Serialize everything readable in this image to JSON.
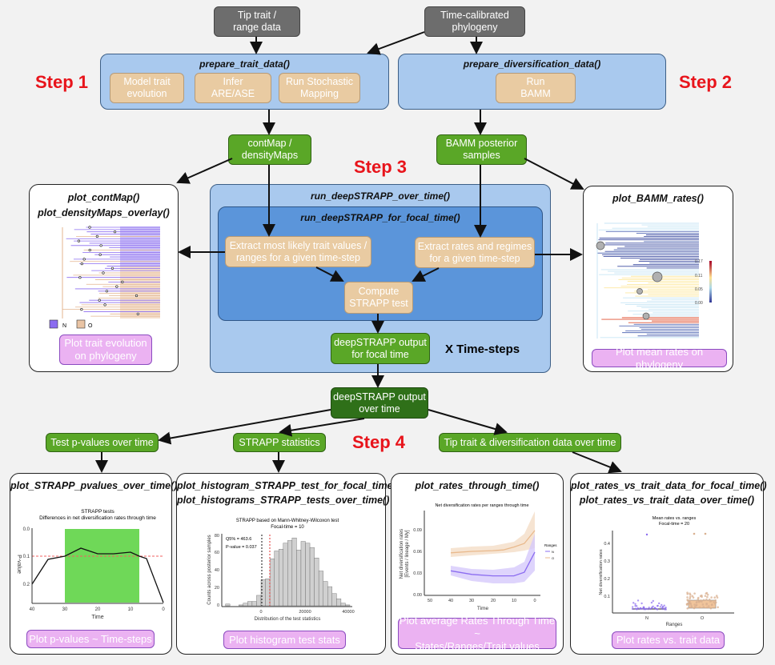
{
  "inputs": {
    "trait": "Tip trait /\nrange data",
    "phylogeny": "Time-calibrated\nphylogeny"
  },
  "steps": {
    "s1": "Step 1",
    "s2": "Step 2",
    "s3": "Step 3",
    "s4": "Step 4"
  },
  "prepare_trait": {
    "title": "prepare_trait_data()",
    "items": [
      "Model trait\nevolution",
      "Infer\nARE/ASE",
      "Run Stochastic\nMapping"
    ]
  },
  "prepare_div": {
    "title": "prepare_diversification_data()",
    "items": [
      "Run\nBAMM"
    ]
  },
  "contmap_node": "contMap /\ndensityMaps",
  "bamm_node": "BAMM posterior\nsamples",
  "over_time": {
    "title": "run_deepSTRAPP_over_time()",
    "repeat_label": "X  Time-steps"
  },
  "focal": {
    "title": "run_deepSTRAPP_for_focal_time()",
    "extract_trait": "Extract most likely trait values /\nranges for a given time-step",
    "extract_rates": "Extract rates and regimes\nfor a given time-step",
    "compute": "Compute\nSTRAPP test"
  },
  "focal_output": "deepSTRAPP output\nfor focal time",
  "overtime_output": "deepSTRAPP output\nover time",
  "step4_labels": [
    "Test p-values over time",
    "STRAPP statistics",
    "Tip trait & diversification data over time"
  ],
  "panel_contmap": {
    "title1": "plot_contMap()",
    "title2": "plot_densityMaps_overlay()",
    "legend": [
      "N",
      "O"
    ],
    "button": "Plot trait evolution\non phylogeny"
  },
  "panel_bamm": {
    "title": "plot_BAMM_rates()",
    "colorbar": [
      "0.17",
      "0.11",
      "0.05",
      "0.00"
    ],
    "button": "Plot mean rates on phylogeny"
  },
  "panel_pvalues": {
    "title": "plot_STRAPP_pvalues_over_time()",
    "plot_title": "STRAPP tests",
    "plot_subtitle": "Differences in net diversification rates through time",
    "ylabel": "P-value",
    "xlabel": "Time",
    "yticks": [
      "0.0",
      "0.1",
      "0.2"
    ],
    "xticks": [
      "40",
      "30",
      "20",
      "10",
      "0"
    ],
    "button": "Plot p-values ~ Time-steps"
  },
  "panel_hist": {
    "title1": "plot_histogram_STRAPP_test_for_focal_time()",
    "title2": "plot_histograms_STRAPP_tests_over_time()",
    "plot_title": "STRAPP based on Mann-Whitney-Wilcoxon test",
    "plot_subtitle": "Focal-time = 10",
    "q5": "Q5% = 463.6",
    "pvalue": "P-value = 0.037",
    "ylabel": "Counts across posterior samples",
    "xlabel": "Distribution of the test statistics",
    "yticks": [
      "0",
      "20",
      "40",
      "60",
      "80"
    ],
    "xticks": [
      "0",
      "20000",
      "40000"
    ],
    "button": "Plot histogram test stats"
  },
  "panel_rtt": {
    "title": "plot_rates_through_time()",
    "plot_title": "Net diversification rates per ranges through time",
    "ylabel1": "Net diversification rates",
    "ylabel2": "[Events / lineage / My]",
    "xlabel": "Time",
    "yticks": [
      "0.00",
      "0.03",
      "0.06",
      "0.09"
    ],
    "xticks": [
      "50",
      "40",
      "30",
      "20",
      "10",
      "0"
    ],
    "legend_title": "Ranges",
    "legend": [
      "N",
      "O"
    ],
    "button": "Plot average Rates Through Time ~\nStates/Ranges/Trait values"
  },
  "panel_box": {
    "title1": "plot_rates_vs_trait_data_for_focal_time()",
    "title2": "plot_rates_vs_trait_data_over_time()",
    "plot_title": "Mean rates vs. ranges",
    "plot_subtitle": "Focal-time = 20",
    "ylabel": "Net diversification rates",
    "xlabel": "Ranges",
    "yticks": [
      "0.1",
      "0.2",
      "0.3",
      "0.4"
    ],
    "xticks": [
      "N",
      "O"
    ],
    "button": "Plot rates vs. trait data"
  },
  "colors": {
    "step": "#e8141b",
    "green": "#5aa727",
    "dark_green": "#2f7019",
    "tan": "#e9cba2",
    "light_blue": "#a9c9ee",
    "blue": "#5b95da",
    "pink": "#ebb2f2",
    "gray": "#6d6d6d",
    "range_N": "#8b6cf0",
    "range_O": "#e9b98c"
  }
}
